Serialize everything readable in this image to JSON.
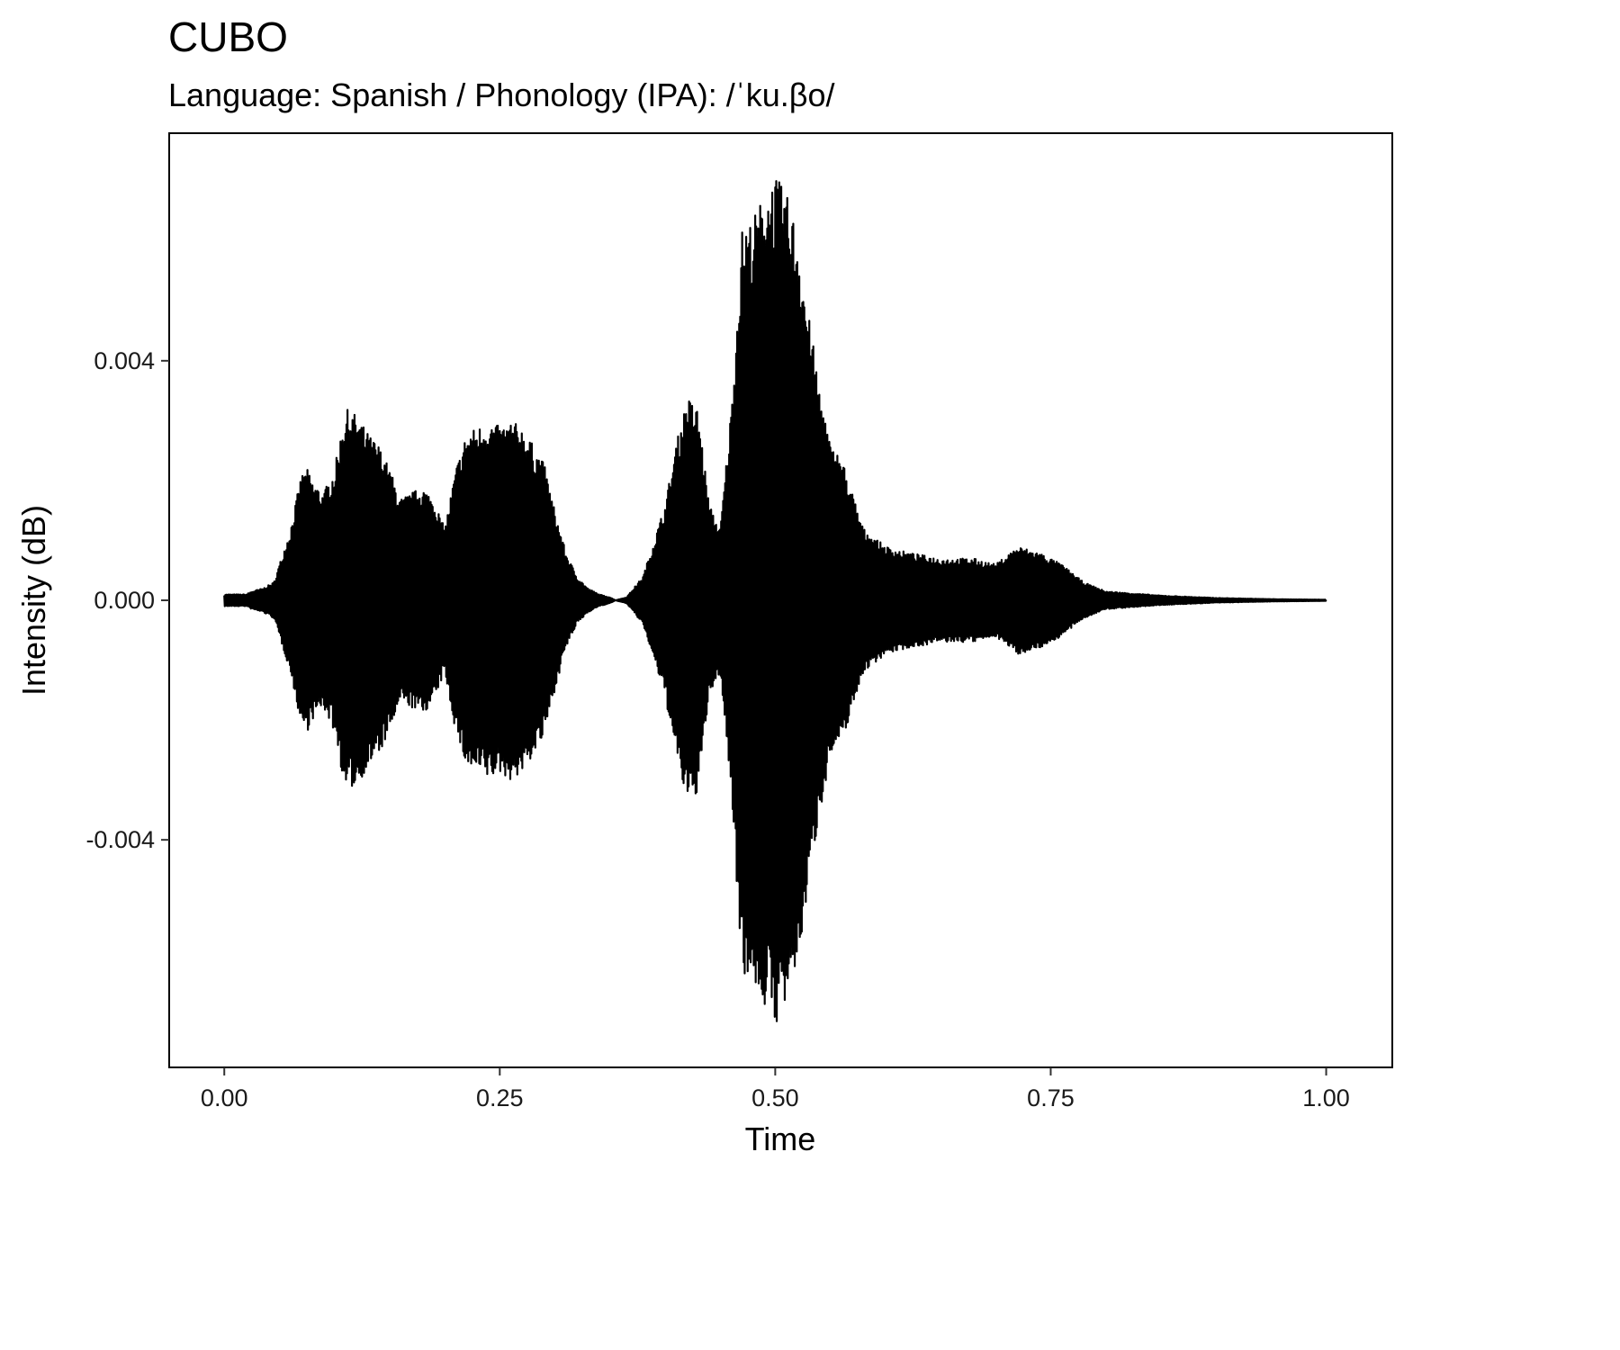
{
  "chart_data": {
    "type": "line",
    "title": "CUBO",
    "subtitle": "Language: Spanish / Phonology (IPA): /ˈku.βo/",
    "xlabel": "Time",
    "ylabel": "Intensity (dB)",
    "xlim": [
      -0.05,
      1.06
    ],
    "ylim": [
      -0.0078,
      0.0078
    ],
    "x_ticks": [
      0,
      0.25,
      0.5,
      0.75,
      1.0
    ],
    "x_tick_labels": [
      "0.00",
      "0.25",
      "0.50",
      "0.75",
      "1.00"
    ],
    "y_ticks": [
      0.004,
      0.0,
      -0.004
    ],
    "y_tick_labels": [
      "0.004",
      "0.000",
      "-0.004"
    ],
    "grid": false,
    "legend": "none",
    "series": [
      {
        "color": "#000000",
        "envelope": {
          "x": [
            0.0,
            0.02,
            0.025,
            0.035,
            0.045,
            0.06,
            0.07,
            0.075,
            0.08,
            0.09,
            0.1,
            0.11,
            0.12,
            0.13,
            0.14,
            0.15,
            0.16,
            0.17,
            0.18,
            0.19,
            0.2,
            0.21,
            0.22,
            0.23,
            0.24,
            0.25,
            0.26,
            0.27,
            0.28,
            0.29,
            0.3,
            0.31,
            0.32,
            0.33,
            0.34,
            0.35,
            0.355,
            0.365,
            0.38,
            0.39,
            0.4,
            0.41,
            0.42,
            0.43,
            0.44,
            0.45,
            0.46,
            0.47,
            0.48,
            0.49,
            0.5,
            0.51,
            0.52,
            0.53,
            0.54,
            0.55,
            0.56,
            0.57,
            0.58,
            0.6,
            0.62,
            0.65,
            0.68,
            0.7,
            0.72,
            0.74,
            0.76,
            0.78,
            0.8,
            0.85,
            0.9,
            0.95,
            1.0
          ],
          "upper": [
            0.0001,
            0.0001,
            0.00015,
            0.0002,
            0.0003,
            0.0012,
            0.0021,
            0.0022,
            0.002,
            0.0018,
            0.0022,
            0.0032,
            0.0031,
            0.0028,
            0.0026,
            0.0022,
            0.0017,
            0.0018,
            0.0019,
            0.0017,
            0.0012,
            0.0022,
            0.0028,
            0.0029,
            0.003,
            0.0029,
            0.003,
            0.0029,
            0.0026,
            0.0023,
            0.0015,
            0.0008,
            0.0004,
            0.0002,
            0.0001,
            5e-05,
            0.0,
            5e-05,
            0.0004,
            0.001,
            0.0016,
            0.0026,
            0.0034,
            0.0032,
            0.0016,
            0.0012,
            0.0032,
            0.0062,
            0.0064,
            0.0068,
            0.0071,
            0.0068,
            0.0062,
            0.0048,
            0.0036,
            0.0026,
            0.0024,
            0.0018,
            0.0012,
            0.0009,
            0.0008,
            0.0007,
            0.0007,
            0.0006,
            0.0009,
            0.0008,
            0.0006,
            0.0003,
            0.00015,
            8e-05,
            4e-05,
            2e-05,
            1e-05
          ]
        },
        "samples": 2200
      }
    ]
  }
}
